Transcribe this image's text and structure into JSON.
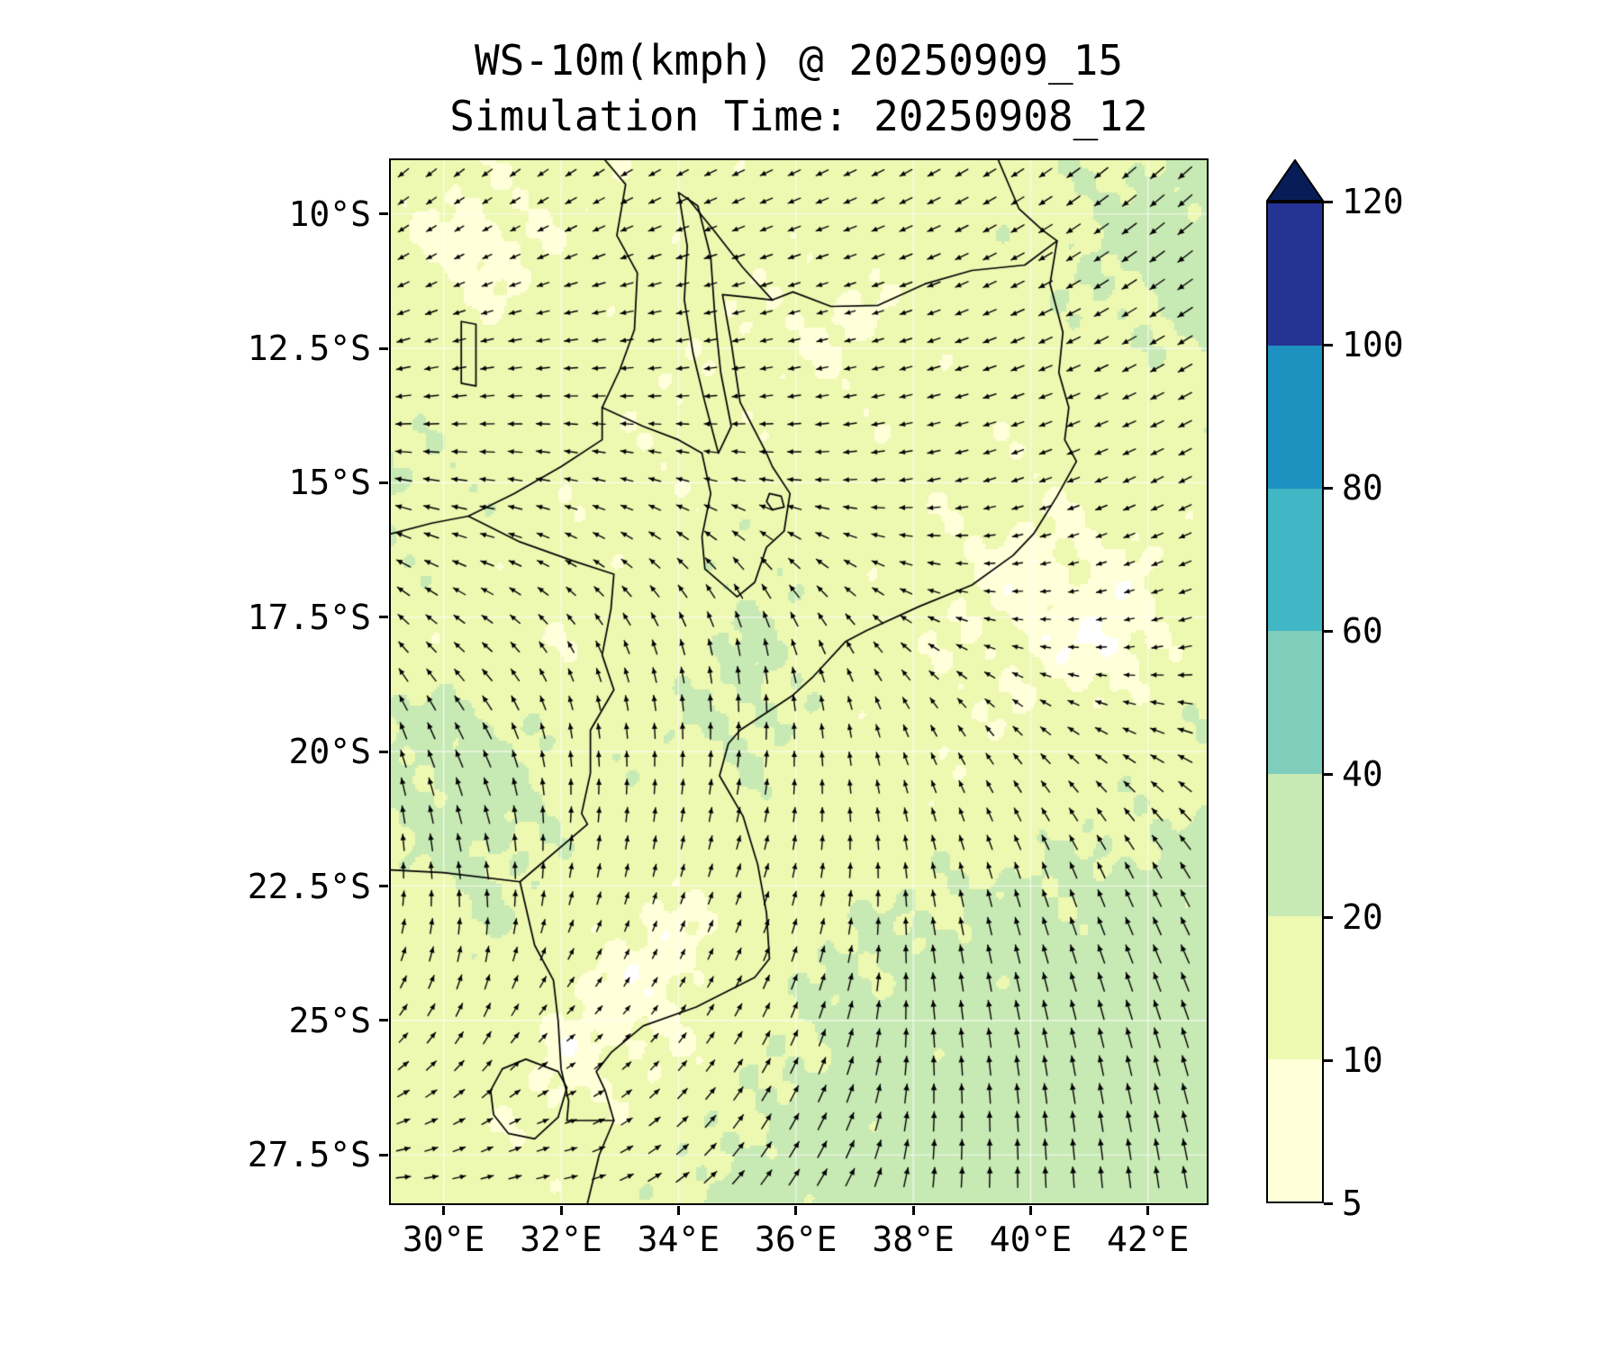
{
  "title": {
    "line1": "WS-10m(kmph) @ 20250909_15",
    "line2": "Simulation Time: 20250908_12"
  },
  "axes": {
    "y_ticks": [
      "10°S",
      "12.5°S",
      "15°S",
      "17.5°S",
      "20°S",
      "22.5°S",
      "25°S",
      "27.5°S"
    ],
    "x_ticks": [
      "30°E",
      "32°E",
      "34°E",
      "36°E",
      "38°E",
      "40°E",
      "42°E"
    ]
  },
  "colorbar": {
    "tick_labels": [
      "5",
      "10",
      "20",
      "40",
      "60",
      "80",
      "100",
      "120"
    ],
    "levels": [
      5,
      10,
      20,
      40,
      60,
      80,
      100,
      120
    ],
    "colors": [
      "#ffffd9",
      "#edf8b1",
      "#c7e9b4",
      "#7fcdbb",
      "#41b6c4",
      "#1d91c0",
      "#253494"
    ],
    "extend_color": "#081d58",
    "extend": "max",
    "under_color": "#ffffff"
  },
  "chart_data": {
    "type": "heatmap",
    "overlay": "quiver-wind-vectors",
    "variable": "WS-10m",
    "units": "kmph",
    "valid_time": "20250909_15",
    "simulation_time": "20250908_12",
    "lon_range": [
      29.1,
      43.0
    ],
    "lat_range": [
      -9.0,
      -28.4
    ],
    "lon_ticks": [
      30,
      32,
      34,
      36,
      38,
      40,
      42
    ],
    "lat_ticks": [
      -10,
      -12.5,
      -15,
      -17.5,
      -20,
      -22.5,
      -25,
      -27.5
    ],
    "levels": [
      5,
      10,
      20,
      40,
      60,
      80,
      100,
      120
    ],
    "colors": [
      "#ffffd9",
      "#edf8b1",
      "#c7e9b4",
      "#7fcdbb",
      "#41b6c4",
      "#1d91c0",
      "#253494"
    ],
    "extend_color": "#081d58",
    "grid_lon": [
      29.1,
      30.64,
      32.19,
      33.73,
      35.28,
      36.82,
      38.37,
      39.91,
      41.46,
      43.0
    ],
    "grid_lat": [
      -9.0,
      -10.49,
      -11.98,
      -13.48,
      -14.97,
      -16.46,
      -17.95,
      -19.45,
      -20.94,
      -22.43,
      -23.92,
      -25.42,
      -26.91,
      -28.4
    ],
    "speed_grid": [
      [
        14,
        13,
        12,
        13,
        14,
        14,
        15,
        16,
        20,
        22
      ],
      [
        12,
        6,
        13,
        14,
        13,
        14,
        15,
        17,
        22,
        24
      ],
      [
        13,
        12,
        14,
        13,
        12,
        8,
        14,
        16,
        19,
        22
      ],
      [
        17,
        15,
        14,
        12,
        13,
        13,
        13,
        14,
        15,
        17
      ],
      [
        20,
        17,
        13,
        12,
        15,
        14,
        13,
        12,
        14,
        15
      ],
      [
        18,
        15,
        12,
        15,
        19,
        15,
        12,
        7,
        9,
        14
      ],
      [
        15,
        13,
        12,
        17,
        21,
        15,
        12,
        9,
        4,
        16
      ],
      [
        21,
        22,
        16,
        18,
        22,
        14,
        12,
        12,
        14,
        18
      ],
      [
        22,
        24,
        18,
        15,
        17,
        14,
        13,
        15,
        17,
        20
      ],
      [
        16,
        22,
        15,
        11,
        14,
        17,
        19,
        21,
        22,
        24
      ],
      [
        14,
        18,
        11,
        6,
        15,
        21,
        23,
        24,
        25,
        26
      ],
      [
        12,
        16,
        7,
        10,
        17,
        23,
        24,
        25,
        26,
        27
      ],
      [
        15,
        12,
        11,
        15,
        21,
        24,
        25,
        26,
        27,
        28
      ],
      [
        17,
        13,
        15,
        19,
        23,
        25,
        26,
        27,
        28,
        30
      ]
    ],
    "direction_to_grid": [
      [
        230,
        232,
        236,
        240,
        244,
        244,
        240,
        236,
        230,
        226
      ],
      [
        238,
        242,
        246,
        250,
        250,
        250,
        246,
        240,
        234,
        230
      ],
      [
        250,
        255,
        260,
        260,
        256,
        254,
        250,
        246,
        240,
        236
      ],
      [
        264,
        266,
        270,
        268,
        264,
        260,
        256,
        250,
        246,
        242
      ],
      [
        280,
        276,
        282,
        286,
        280,
        268,
        258,
        250,
        246,
        242
      ],
      [
        298,
        290,
        300,
        312,
        320,
        300,
        278,
        260,
        250,
        246
      ],
      [
        318,
        310,
        330,
        342,
        350,
        330,
        300,
        280,
        262,
        256
      ],
      [
        338,
        330,
        350,
        356,
        2,
        350,
        330,
        310,
        292,
        282
      ],
      [
        350,
        342,
        2,
        6,
        12,
        356,
        342,
        330,
        320,
        312
      ],
      [
        2,
        352,
        12,
        16,
        20,
        6,
        350,
        342,
        336,
        330
      ],
      [
        22,
        12,
        30,
        28,
        24,
        14,
        352,
        346,
        340,
        336
      ],
      [
        46,
        32,
        52,
        40,
        30,
        18,
        356,
        350,
        346,
        342
      ],
      [
        72,
        60,
        72,
        50,
        34,
        24,
        2,
        356,
        350,
        346
      ],
      [
        92,
        82,
        80,
        60,
        40,
        30,
        6,
        0,
        355,
        350
      ]
    ],
    "geo": {
      "coast": [
        [
          39.45,
          -9.0
        ],
        [
          39.8,
          -9.9
        ],
        [
          40.2,
          -10.3
        ],
        [
          40.45,
          -10.5
        ],
        [
          40.33,
          -11.3
        ],
        [
          40.55,
          -12.2
        ],
        [
          40.48,
          -12.95
        ],
        [
          40.65,
          -13.6
        ],
        [
          40.58,
          -14.2
        ],
        [
          40.78,
          -14.6
        ],
        [
          40.45,
          -15.25
        ],
        [
          40.05,
          -15.95
        ],
        [
          39.7,
          -16.35
        ],
        [
          39.0,
          -16.9
        ],
        [
          38.1,
          -17.3
        ],
        [
          37.2,
          -17.75
        ],
        [
          36.85,
          -17.95
        ],
        [
          36.3,
          -18.6
        ],
        [
          35.95,
          -18.95
        ],
        [
          35.05,
          -19.6
        ],
        [
          34.85,
          -19.85
        ],
        [
          34.7,
          -20.45
        ],
        [
          35.1,
          -21.2
        ],
        [
          35.35,
          -22.1
        ],
        [
          35.5,
          -23.0
        ],
        [
          35.55,
          -23.85
        ],
        [
          35.3,
          -24.2
        ],
        [
          34.3,
          -24.75
        ],
        [
          33.4,
          -25.1
        ],
        [
          32.85,
          -25.6
        ],
        [
          32.6,
          -25.95
        ],
        [
          32.75,
          -26.3
        ],
        [
          32.9,
          -26.86
        ],
        [
          32.65,
          -27.5
        ],
        [
          32.45,
          -28.4
        ]
      ],
      "rovuma_border": [
        [
          40.45,
          -10.5
        ],
        [
          39.9,
          -10.95
        ],
        [
          39.0,
          -11.05
        ],
        [
          38.2,
          -11.3
        ],
        [
          37.4,
          -11.7
        ],
        [
          36.6,
          -11.72
        ],
        [
          35.95,
          -11.45
        ],
        [
          35.6,
          -11.6
        ]
      ],
      "lake_malawi": [
        [
          34.0,
          -9.6
        ],
        [
          34.15,
          -10.6
        ],
        [
          34.1,
          -11.6
        ],
        [
          34.25,
          -12.6
        ],
        [
          34.45,
          -13.5
        ],
        [
          34.62,
          -14.2
        ],
        [
          34.68,
          -14.45
        ],
        [
          34.9,
          -13.95
        ],
        [
          34.72,
          -12.95
        ],
        [
          34.62,
          -11.9
        ],
        [
          34.55,
          -10.8
        ],
        [
          34.33,
          -9.85
        ],
        [
          34.0,
          -9.6
        ]
      ],
      "tz_malawi_border": [
        [
          34.15,
          -9.7
        ],
        [
          34.6,
          -10.3
        ],
        [
          35.1,
          -11.0
        ],
        [
          35.6,
          -11.6
        ]
      ],
      "malawi_west": [
        [
          32.75,
          -9.0
        ],
        [
          33.1,
          -9.45
        ],
        [
          32.95,
          -10.4
        ],
        [
          33.3,
          -11.1
        ],
        [
          33.25,
          -12.15
        ],
        [
          33.0,
          -12.9
        ],
        [
          32.7,
          -13.6
        ],
        [
          33.4,
          -13.95
        ],
        [
          34.0,
          -14.2
        ],
        [
          34.4,
          -14.45
        ]
      ],
      "malawi_south": [
        [
          34.4,
          -14.45
        ],
        [
          34.55,
          -15.2
        ],
        [
          34.4,
          -16.0
        ],
        [
          34.45,
          -16.6
        ],
        [
          35.0,
          -17.12
        ],
        [
          35.3,
          -16.85
        ],
        [
          35.5,
          -16.2
        ],
        [
          35.8,
          -15.9
        ],
        [
          35.9,
          -15.2
        ],
        [
          35.6,
          -14.7
        ],
        [
          35.5,
          -14.45
        ],
        [
          35.05,
          -13.5
        ],
        [
          34.9,
          -12.4
        ],
        [
          34.75,
          -11.5
        ],
        [
          35.2,
          -11.55
        ],
        [
          35.6,
          -11.6
        ]
      ],
      "zambia_border": [
        [
          29.1,
          -15.95
        ],
        [
          29.8,
          -15.75
        ],
        [
          30.42,
          -15.62
        ],
        [
          31.2,
          -15.2
        ],
        [
          32.0,
          -14.7
        ],
        [
          32.7,
          -14.2
        ],
        [
          32.7,
          -13.6
        ]
      ],
      "zimbabwe_border": [
        [
          30.42,
          -15.62
        ],
        [
          31.3,
          -16.1
        ],
        [
          32.2,
          -16.45
        ],
        [
          32.9,
          -16.7
        ],
        [
          32.85,
          -17.35
        ],
        [
          32.7,
          -18.2
        ],
        [
          32.9,
          -18.85
        ],
        [
          32.5,
          -19.6
        ],
        [
          32.5,
          -20.4
        ],
        [
          32.35,
          -21.15
        ],
        [
          32.45,
          -21.35
        ],
        [
          31.3,
          -22.42
        ]
      ],
      "limpopo_border": [
        [
          29.1,
          -22.2
        ],
        [
          30.0,
          -22.25
        ],
        [
          31.3,
          -22.42
        ]
      ],
      "sa_moz_border": [
        [
          31.3,
          -22.42
        ],
        [
          31.55,
          -23.6
        ],
        [
          31.87,
          -24.25
        ],
        [
          31.95,
          -25.0
        ],
        [
          32.0,
          -25.9
        ],
        [
          32.13,
          -26.5
        ],
        [
          32.1,
          -26.86
        ],
        [
          32.9,
          -26.86
        ]
      ],
      "eswatini": [
        [
          31.0,
          -25.9
        ],
        [
          31.4,
          -25.72
        ],
        [
          31.95,
          -25.95
        ],
        [
          32.1,
          -26.25
        ],
        [
          31.95,
          -26.8
        ],
        [
          31.55,
          -27.2
        ],
        [
          31.1,
          -27.1
        ],
        [
          30.85,
          -26.75
        ],
        [
          30.8,
          -26.3
        ],
        [
          31.0,
          -25.9
        ]
      ],
      "small_lake": [
        [
          30.3,
          -12.0
        ],
        [
          30.55,
          -12.05
        ],
        [
          30.55,
          -13.2
        ],
        [
          30.3,
          -13.15
        ],
        [
          30.3,
          -12.0
        ]
      ],
      "lake_chilwa": [
        [
          35.55,
          -15.2
        ],
        [
          35.75,
          -15.25
        ],
        [
          35.8,
          -15.45
        ],
        [
          35.6,
          -15.5
        ],
        [
          35.5,
          -15.35
        ],
        [
          35.55,
          -15.2
        ]
      ]
    }
  }
}
